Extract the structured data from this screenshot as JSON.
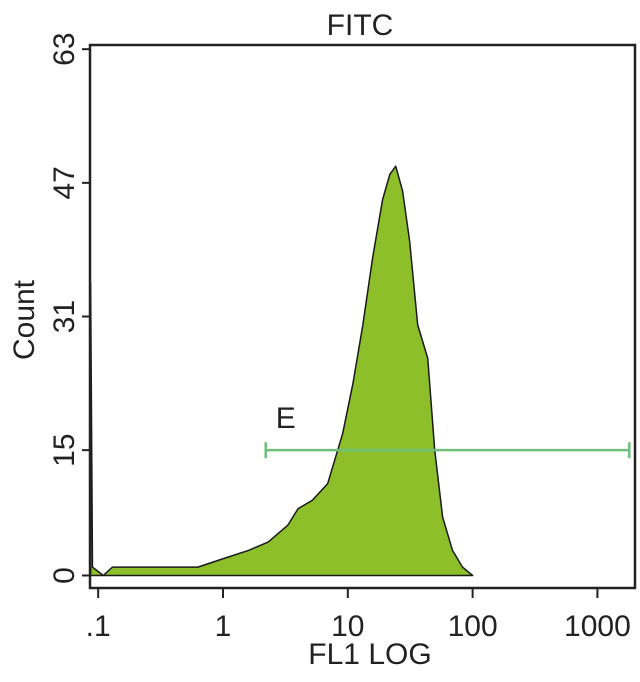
{
  "chart_data": {
    "type": "histogram-line",
    "title": "FITC",
    "x_label": "FL1 LOG",
    "y_label": "Count",
    "x_scale": "log",
    "xlim": [
      0.086,
      2000
    ],
    "ylim": [
      -1.5,
      63.5
    ],
    "xticks": [
      {
        "value": 0.1,
        "label": ".1"
      },
      1,
      10,
      100,
      1000
    ],
    "yticks": [
      0,
      15,
      31,
      47,
      63
    ],
    "series": [
      {
        "color": "#8cbf2a",
        "x": [
          0.087,
          0.09,
          0.11,
          0.13,
          0.25,
          0.63,
          1,
          1.6,
          2.3,
          3.3,
          4,
          5.2,
          6.9,
          9.1,
          11,
          13.2,
          15.8,
          19,
          21.7,
          24.2,
          27.5,
          31.3,
          36.3,
          43.7,
          49.7,
          57.5,
          69,
          83,
          100
        ],
        "values": [
          35,
          1,
          0,
          1,
          1,
          1,
          2,
          3,
          4,
          6,
          8,
          9,
          11,
          17,
          23,
          30,
          38,
          45,
          48,
          49,
          46,
          40,
          30,
          26,
          15,
          7,
          3,
          1,
          0
        ]
      }
    ],
    "gate": {
      "label": "E",
      "x": [
        2.2,
        1800
      ],
      "y": 15,
      "color": "#6dbf7a"
    }
  }
}
